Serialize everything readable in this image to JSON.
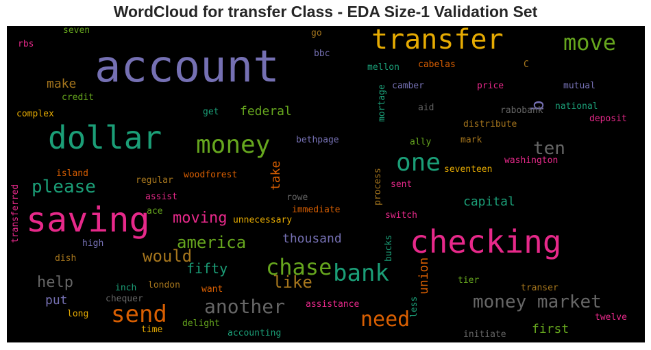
{
  "title": "WordCloud for transfer Class - EDA Size-1 Validation Set",
  "colors": {
    "purple": "#7570b3",
    "orange": "#d95f02",
    "teal": "#1b9e77",
    "pink": "#e7298a",
    "green": "#66a61e",
    "gold": "#e6ab02",
    "brown": "#a6761d",
    "gray": "#666666"
  },
  "words": [
    {
      "text": "account",
      "color": "#7570b3"
    },
    {
      "text": "transfer",
      "color": "#e6ab02"
    },
    {
      "text": "move",
      "color": "#66a61e"
    },
    {
      "text": "dollar",
      "color": "#1b9e77"
    },
    {
      "text": "money",
      "color": "#66a61e"
    },
    {
      "text": "saving",
      "color": "#e7298a"
    },
    {
      "text": "checking",
      "color": "#e7298a"
    },
    {
      "text": "one",
      "color": "#1b9e77"
    },
    {
      "text": "ten",
      "color": "#666666"
    },
    {
      "text": "bank",
      "color": "#1b9e77"
    },
    {
      "text": "chase",
      "color": "#66a61e"
    },
    {
      "text": "send",
      "color": "#d95f02"
    },
    {
      "text": "need",
      "color": "#d95f02"
    },
    {
      "text": "another",
      "color": "#666666"
    },
    {
      "text": "money market",
      "color": "#666666"
    },
    {
      "text": "america",
      "color": "#66a61e"
    },
    {
      "text": "please",
      "color": "#1b9e77"
    },
    {
      "text": "moving",
      "color": "#e7298a"
    },
    {
      "text": "would",
      "color": "#a6761d"
    },
    {
      "text": "help",
      "color": "#666666"
    },
    {
      "text": "like",
      "color": "#a6761d"
    },
    {
      "text": "fifty",
      "color": "#1b9e77"
    },
    {
      "text": "thousand",
      "color": "#7570b3"
    },
    {
      "text": "capital",
      "color": "#1b9e77"
    },
    {
      "text": "federal",
      "color": "#66a61e"
    },
    {
      "text": "make",
      "color": "#a6761d"
    },
    {
      "text": "put",
      "color": "#7570b3"
    },
    {
      "text": "first",
      "color": "#66a61e"
    },
    {
      "text": "b",
      "color": "#7570b3"
    },
    {
      "text": "take",
      "color": "#d95f02"
    },
    {
      "text": "union",
      "color": "#d95f02"
    },
    {
      "text": "seven",
      "color": "#66a61e"
    },
    {
      "text": "rbs",
      "color": "#e7298a"
    },
    {
      "text": "go",
      "color": "#a6761d"
    },
    {
      "text": "bbc",
      "color": "#7570b3"
    },
    {
      "text": "mellon",
      "color": "#1b9e77"
    },
    {
      "text": "cabelas",
      "color": "#d95f02"
    },
    {
      "text": "C",
      "color": "#a6761d"
    },
    {
      "text": "camber",
      "color": "#7570b3"
    },
    {
      "text": "price",
      "color": "#e7298a"
    },
    {
      "text": "mutual",
      "color": "#7570b3"
    },
    {
      "text": "credit",
      "color": "#66a61e"
    },
    {
      "text": "aid",
      "color": "#666666"
    },
    {
      "text": "rabobank",
      "color": "#666666"
    },
    {
      "text": "national",
      "color": "#1b9e77"
    },
    {
      "text": "complex",
      "color": "#e6ab02"
    },
    {
      "text": "get",
      "color": "#1b9e77"
    },
    {
      "text": "mortage",
      "color": "#1b9e77"
    },
    {
      "text": "distribute",
      "color": "#a6761d"
    },
    {
      "text": "deposit",
      "color": "#e7298a"
    },
    {
      "text": "bethpage",
      "color": "#7570b3"
    },
    {
      "text": "ally",
      "color": "#66a61e"
    },
    {
      "text": "mark",
      "color": "#a6761d"
    },
    {
      "text": "washington",
      "color": "#e7298a"
    },
    {
      "text": "island",
      "color": "#d95f02"
    },
    {
      "text": "woodforest",
      "color": "#d95f02"
    },
    {
      "text": "seventeen",
      "color": "#e6ab02"
    },
    {
      "text": "regular",
      "color": "#a6761d"
    },
    {
      "text": "process",
      "color": "#a6761d"
    },
    {
      "text": "sent",
      "color": "#e7298a"
    },
    {
      "text": "transferred",
      "color": "#e7298a"
    },
    {
      "text": "assist",
      "color": "#e7298a"
    },
    {
      "text": "rowe",
      "color": "#666666"
    },
    {
      "text": "ace",
      "color": "#66a61e"
    },
    {
      "text": "immediate",
      "color": "#d95f02"
    },
    {
      "text": "unnecessary",
      "color": "#e6ab02"
    },
    {
      "text": "switch",
      "color": "#e7298a"
    },
    {
      "text": "high",
      "color": "#7570b3"
    },
    {
      "text": "bucks",
      "color": "#1b9e77"
    },
    {
      "text": "dish",
      "color": "#a6761d"
    },
    {
      "text": "tier",
      "color": "#66a61e"
    },
    {
      "text": "inch",
      "color": "#1b9e77"
    },
    {
      "text": "london",
      "color": "#a6761d"
    },
    {
      "text": "want",
      "color": "#d95f02"
    },
    {
      "text": "transer",
      "color": "#a6761d"
    },
    {
      "text": "chequer",
      "color": "#666666"
    },
    {
      "text": "assistance",
      "color": "#e7298a"
    },
    {
      "text": "less",
      "color": "#1b9e77"
    },
    {
      "text": "long",
      "color": "#e6ab02"
    },
    {
      "text": "twelve",
      "color": "#e7298a"
    },
    {
      "text": "delight",
      "color": "#66a61e"
    },
    {
      "text": "time",
      "color": "#e6ab02"
    },
    {
      "text": "accounting",
      "color": "#1b9e77"
    },
    {
      "text": "initiate",
      "color": "#666666"
    }
  ]
}
